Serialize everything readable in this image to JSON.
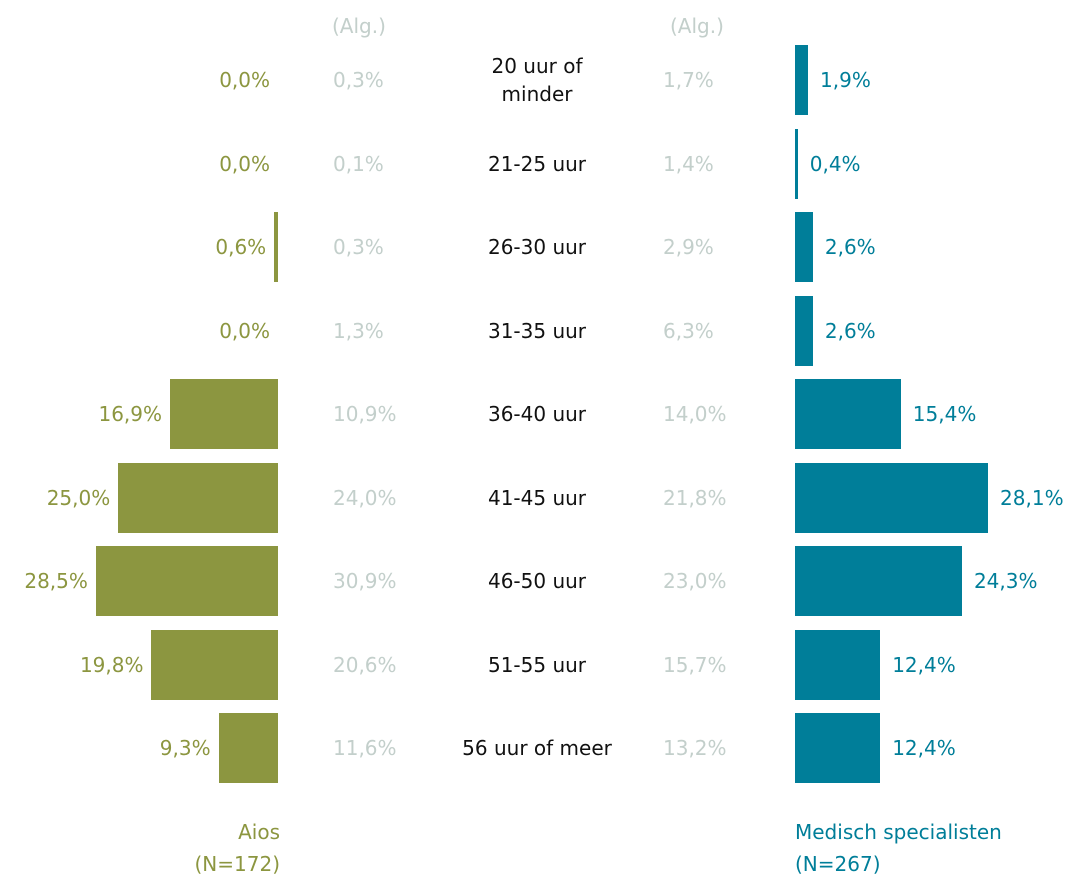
{
  "chart_data": {
    "type": "butterfly",
    "column_headers": [
      "(Alg.)",
      "(Alg.)"
    ],
    "categories": [
      "20 uur of\nminder",
      "21-25 uur",
      "26-30 uur",
      "31-35 uur",
      "36-40 uur",
      "41-45 uur",
      "46-50 uur",
      "51-55 uur",
      "56 uur of meer"
    ],
    "series": [
      {
        "name": "Aios",
        "note": "(N=172)",
        "color": "#8c9640",
        "values": [
          0.0,
          0.0,
          0.6,
          0.0,
          16.9,
          25.0,
          28.5,
          19.8,
          9.3
        ],
        "value_labels": [
          "0,0%",
          "0,0%",
          "0,6%",
          "0,0%",
          "16,9%",
          "25,0%",
          "28,5%",
          "19,8%",
          "9,3%"
        ]
      },
      {
        "name": "Aios (Alg.)",
        "color": "#c3cfcb",
        "values": [
          0.3,
          0.1,
          0.3,
          1.3,
          10.9,
          24.0,
          30.9,
          20.6,
          11.6
        ],
        "value_labels": [
          "0,3%",
          "0,1%",
          "0,3%",
          "1,3%",
          "10,9%",
          "24,0%",
          "30,9%",
          "20,6%",
          "11,6%"
        ]
      },
      {
        "name": "Medisch specialisten (Alg.)",
        "color": "#c3cfcb",
        "values": [
          1.7,
          1.4,
          2.9,
          6.3,
          14.0,
          21.8,
          23.0,
          15.7,
          13.2
        ],
        "value_labels": [
          "1,7%",
          "1,4%",
          "2,9%",
          "6,3%",
          "14,0%",
          "21,8%",
          "23,0%",
          "15,7%",
          "13,2%"
        ]
      },
      {
        "name": "Medisch specialisten",
        "note": "(N=267)",
        "color": "#007e99",
        "values": [
          1.9,
          0.4,
          2.6,
          2.6,
          15.4,
          28.1,
          24.3,
          12.4,
          12.4
        ],
        "value_labels": [
          "1,9%",
          "0,4%",
          "2,6%",
          "2,6%",
          "15,4%",
          "28,1%",
          "24,3%",
          "12,4%",
          "12,4%"
        ]
      }
    ]
  }
}
